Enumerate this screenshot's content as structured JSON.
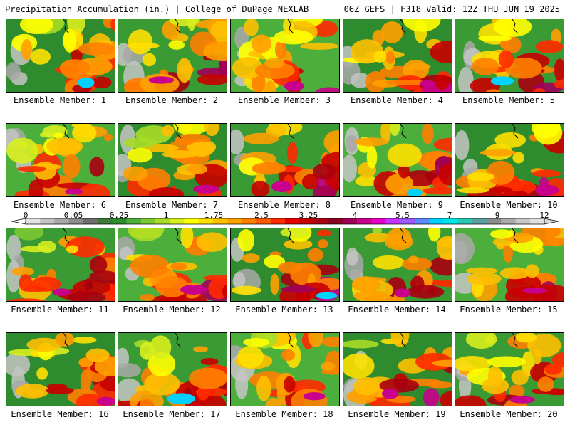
{
  "header": {
    "left": "Precipitation Accumulation (in.) | College of DuPage NEXLAB",
    "right": "06Z GEFS | F318 Valid: 12Z THU JUN 19 2025"
  },
  "colorbar": {
    "labels": [
      "0",
      "0.05",
      "0.25",
      "1",
      "1.75",
      "2.5",
      "3.25",
      "4",
      "5.5",
      "7",
      "9",
      "12"
    ],
    "colors": [
      "#e2e2e2",
      "#c4c4c4",
      "#a8a8a8",
      "#8c8c8c",
      "#6e6e6e",
      "#3a7a3a",
      "#2e8b2e",
      "#4caf3c",
      "#7cc832",
      "#a8dc28",
      "#d8ee1e",
      "#ffff00",
      "#ffe000",
      "#ffc000",
      "#ffa000",
      "#ff8000",
      "#ff5a00",
      "#ff2a00",
      "#e80000",
      "#c80000",
      "#a80010",
      "#8a0022",
      "#a0005a",
      "#c8008c",
      "#e600c8",
      "#c832ff",
      "#9a5aff",
      "#5a8aff",
      "#00d2ff",
      "#00e6e6",
      "#28c8b4",
      "#5aa0a0",
      "#8c8c8c",
      "#aaaaaa",
      "#c8c8c8",
      "#e0e0e0"
    ]
  },
  "panels": [
    {
      "label": "Ensemble Member: 1"
    },
    {
      "label": "Ensemble Member: 2"
    },
    {
      "label": "Ensemble Member: 3"
    },
    {
      "label": "Ensemble Member: 4"
    },
    {
      "label": "Ensemble Member: 5"
    },
    {
      "label": "Ensemble Member: 6"
    },
    {
      "label": "Ensemble Member: 7"
    },
    {
      "label": "Ensemble Member: 8"
    },
    {
      "label": "Ensemble Member: 9"
    },
    {
      "label": "Ensemble Member: 10"
    },
    {
      "label": "Ensemble Member: 11"
    },
    {
      "label": "Ensemble Member: 12"
    },
    {
      "label": "Ensemble Member: 13"
    },
    {
      "label": "Ensemble Member: 14"
    },
    {
      "label": "Ensemble Member: 15"
    },
    {
      "label": "Ensemble Member: 16"
    },
    {
      "label": "Ensemble Member: 17"
    },
    {
      "label": "Ensemble Member: 18"
    },
    {
      "label": "Ensemble Member: 19"
    },
    {
      "label": "Ensemble Member: 20"
    }
  ]
}
